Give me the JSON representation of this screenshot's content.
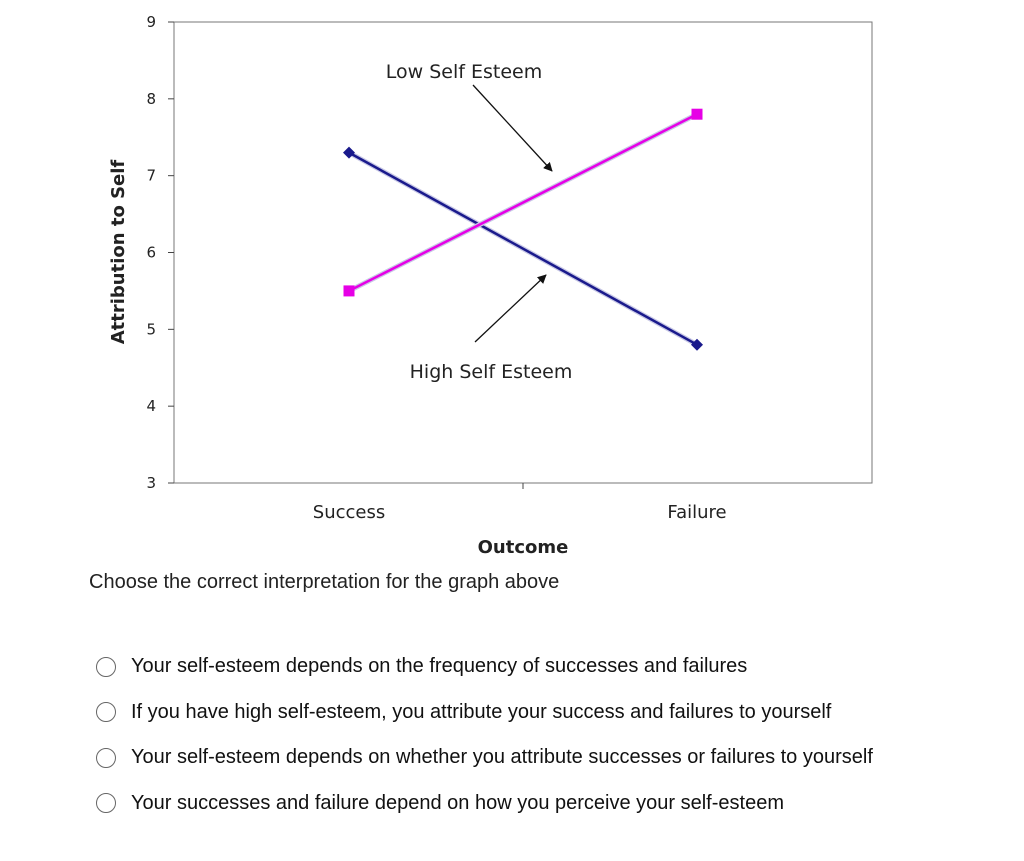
{
  "chart_data": {
    "type": "line",
    "categories": [
      "Success",
      "Failure"
    ],
    "series": [
      {
        "values": [
          7.3,
          4.8
        ],
        "color": "#1a1a8c"
      },
      {
        "values": [
          5.5,
          7.8
        ],
        "color": "#e600e6"
      }
    ],
    "annotations": [
      {
        "text": "Low Self Esteem",
        "points_to": 1
      },
      {
        "text": "High Self Esteem",
        "points_to": 0
      }
    ],
    "xlabel": "Outcome",
    "ylabel": "Attribution to Self",
    "ylim": [
      3,
      9
    ],
    "yticks": [
      3,
      4,
      5,
      6,
      7,
      8,
      9
    ],
    "grid": false
  },
  "question": {
    "prompt": "Choose the correct interpretation for the graph above",
    "options": [
      "Your self-esteem depends on the frequency of successes and failures",
      "If you have high self-esteem, you attribute your success and failures to yourself",
      "Your self-esteem depends on whether you attribute successes or failures to yourself",
      "Your successes and failure depend on how you perceive your self-esteem"
    ]
  }
}
